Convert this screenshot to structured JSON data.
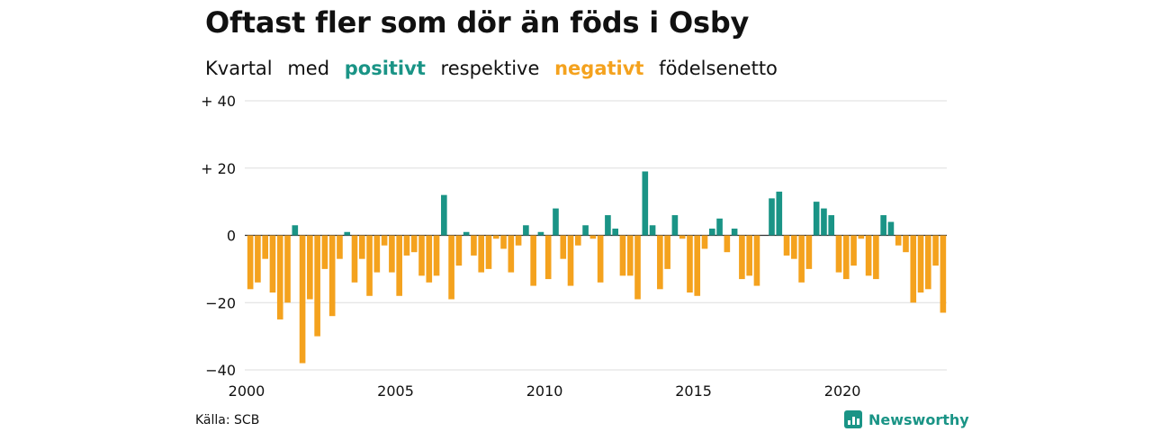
{
  "title": "Oftast fler som dör än föds i Osby",
  "subtitle": {
    "part1": "Kvartal",
    "part2": "med",
    "positive_word": "positivt",
    "part3": "respektive",
    "negative_word": "negativt",
    "part4": "födelsenetto"
  },
  "colors": {
    "positive": "#1a9486",
    "negative": "#f4a21e",
    "grid": "#dddddd"
  },
  "source": "Källa: SCB",
  "brand": {
    "name": "Newsworthy",
    "icon": "bar-chart-logo-icon"
  },
  "chart_data": {
    "type": "bar",
    "x_start": "2000-Q1",
    "values": [
      -16,
      -14,
      -7,
      -17,
      -25,
      -20,
      3,
      -38,
      -19,
      -30,
      -10,
      -24,
      -7,
      1,
      -14,
      -7,
      -18,
      -11,
      -3,
      -11,
      -18,
      -6,
      -5,
      -12,
      -14,
      -12,
      12,
      -19,
      -9,
      1,
      -6,
      -11,
      -10,
      -1,
      -4,
      -11,
      -3,
      3,
      -15,
      1,
      -13,
      8,
      -7,
      -15,
      -3,
      3,
      -1,
      -14,
      6,
      2,
      -12,
      -12,
      -19,
      19,
      3,
      -16,
      -10,
      6,
      -1,
      -17,
      -18,
      -4,
      2,
      5,
      -5,
      2,
      -13,
      -12,
      -15,
      0,
      11,
      13,
      -6,
      -7,
      -14,
      -10,
      10,
      8,
      6,
      -11,
      -13,
      -9,
      -1,
      -12,
      -13,
      6,
      4,
      -3,
      -5,
      -20,
      -17,
      -16,
      -9,
      -23
    ],
    "yticks": [
      40,
      20,
      0,
      -20,
      -40
    ],
    "ytick_labels": [
      "+ 40",
      "+ 20",
      "0",
      "−20",
      "−40"
    ],
    "ylim": [
      -40,
      40
    ],
    "xticks": [
      "2000",
      "2005",
      "2010",
      "2015",
      "2020"
    ],
    "grid": true
  }
}
